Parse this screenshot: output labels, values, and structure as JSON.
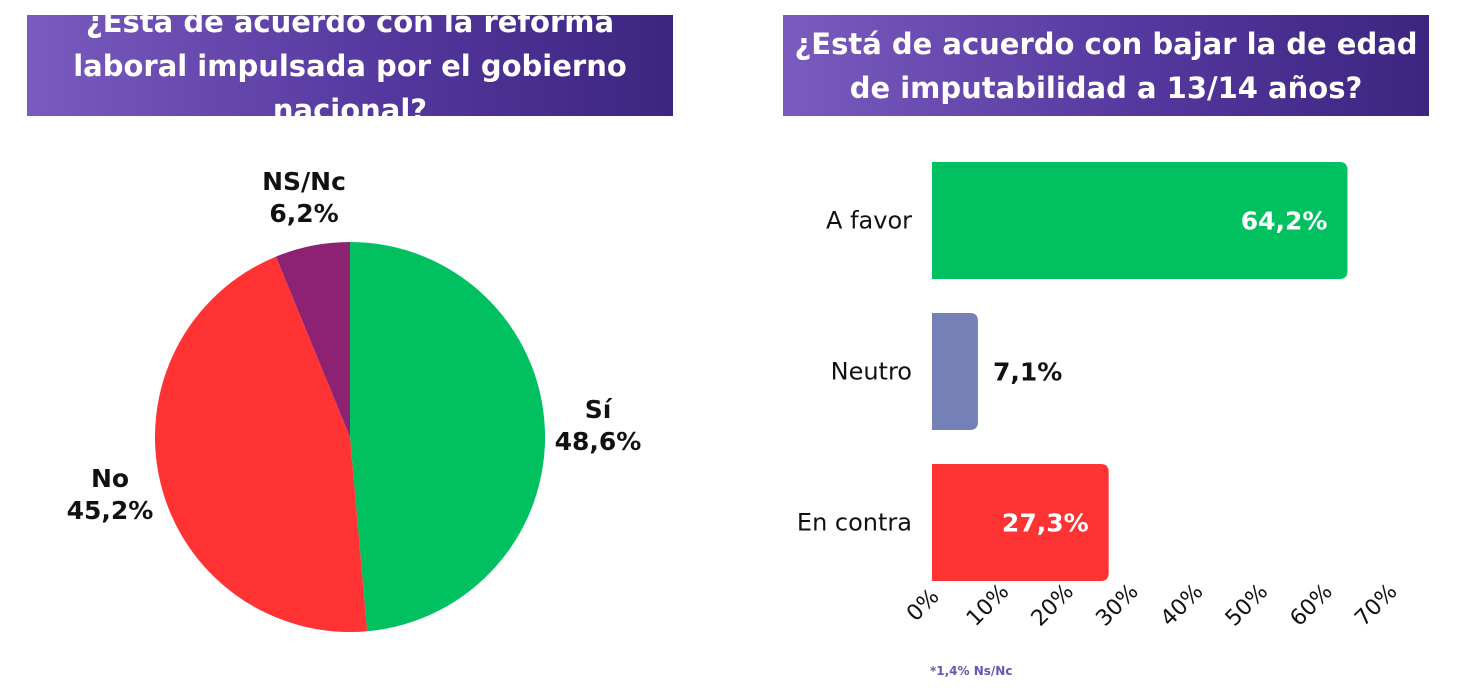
{
  "chart_data": [
    {
      "type": "pie",
      "title": "¿Está de acuerdo con la reforma laboral impulsada por el gobierno nacional?",
      "slices": [
        {
          "name": "Sí",
          "label": "48,6%",
          "value": 48.6,
          "color": "#00c060"
        },
        {
          "name": "No",
          "label": "45,2%",
          "value": 45.2,
          "color": "#ff3333"
        },
        {
          "name": "NS/Nc",
          "label": "6,2%",
          "value": 6.2,
          "color": "#8e2272"
        }
      ]
    },
    {
      "type": "bar",
      "orientation": "horizontal",
      "title": "¿Está de acuerdo con bajar la de edad de imputabilidad a 13/14 años?",
      "categories": [
        "A favor",
        "Neutro",
        "En contra"
      ],
      "values": [
        64.2,
        7.1,
        27.3
      ],
      "value_labels": [
        "64,2%",
        "7,1%",
        "27,3%"
      ],
      "colors": [
        "#00c060",
        "#7480b6",
        "#ff3333"
      ],
      "xlim": [
        0,
        70
      ],
      "ticks": [
        "0%",
        "10%",
        "20%",
        "30%",
        "40%",
        "50%",
        "60%",
        "70%"
      ],
      "grid": false,
      "footnote": "*1,4% Ns/Nc"
    }
  ]
}
